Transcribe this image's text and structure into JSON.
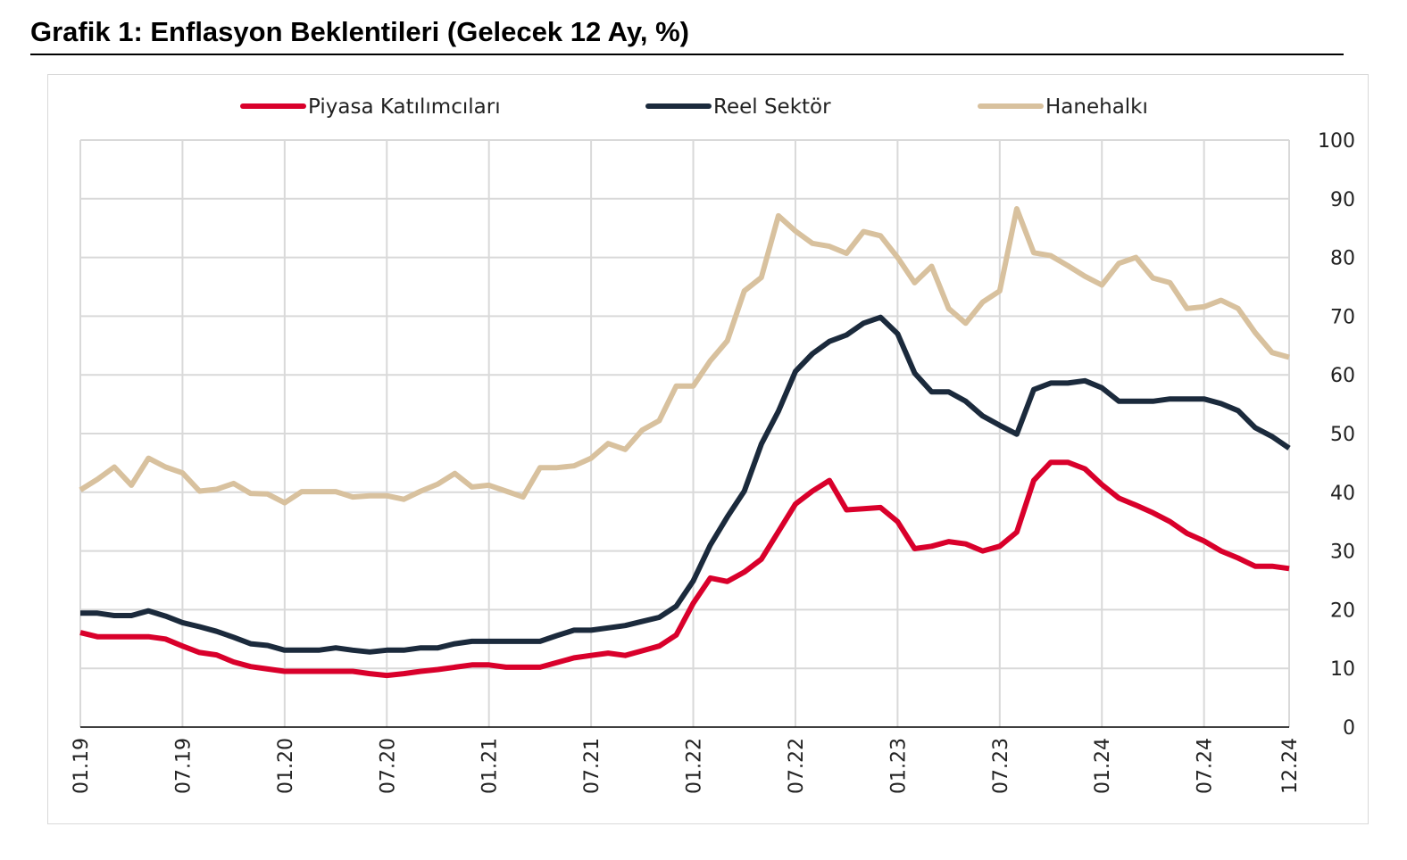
{
  "chart_data": {
    "type": "line",
    "title": "Grafik 1: Enflasyon Beklentileri (Gelecek 12 Ay, %)",
    "xlabel": "",
    "ylabel": "",
    "ylim": [
      0,
      100
    ],
    "y_ticks": [
      0,
      10,
      20,
      30,
      40,
      50,
      60,
      70,
      80,
      90,
      100
    ],
    "x_tick_labels": [
      "01.19",
      "07.19",
      "01.20",
      "07.20",
      "01.21",
      "07.21",
      "01.22",
      "07.22",
      "01.23",
      "07.23",
      "01.24",
      "07.24",
      "12.24"
    ],
    "x_tick_index": [
      0,
      6,
      12,
      18,
      24,
      30,
      36,
      42,
      48,
      54,
      60,
      66,
      71
    ],
    "n_points": 72,
    "grid": true,
    "legend_position": "top",
    "series": [
      {
        "name": "Piyasa Katılımcıları",
        "color": "#d9002b",
        "values": [
          16.1,
          15.4,
          15.4,
          15.4,
          15.4,
          15.0,
          13.8,
          12.7,
          12.3,
          11.1,
          10.3,
          9.9,
          9.5,
          9.5,
          9.5,
          9.5,
          9.5,
          9.1,
          8.8,
          9.1,
          9.5,
          9.8,
          10.2,
          10.6,
          10.6,
          10.2,
          10.2,
          10.2,
          11.0,
          11.8,
          12.2,
          12.6,
          12.2,
          13.0,
          13.8,
          15.7,
          21.1,
          25.4,
          24.8,
          26.4,
          28.6,
          33.3,
          38.0,
          40.2,
          42.0,
          37.0,
          37.2,
          37.4,
          35.0,
          30.4,
          30.8,
          31.6,
          31.2,
          30.0,
          30.8,
          33.2,
          42.0,
          45.1,
          45.1,
          44.0,
          41.3,
          39.0,
          37.8,
          36.5,
          35.0,
          33.0,
          31.7,
          30.0,
          28.8,
          27.4,
          27.4,
          27.0
        ]
      },
      {
        "name": "Reel Sektör",
        "color": "#1b2a3c",
        "values": [
          19.4,
          19.4,
          19.0,
          19.0,
          19.8,
          18.9,
          17.8,
          17.1,
          16.3,
          15.3,
          14.2,
          13.9,
          13.1,
          13.1,
          13.1,
          13.5,
          13.1,
          12.8,
          13.1,
          13.1,
          13.5,
          13.5,
          14.2,
          14.6,
          14.6,
          14.6,
          14.6,
          14.6,
          15.6,
          16.5,
          16.5,
          16.9,
          17.3,
          18.0,
          18.7,
          20.6,
          24.9,
          31.0,
          35.8,
          40.2,
          48.2,
          53.8,
          60.6,
          63.6,
          65.7,
          66.8,
          68.8,
          69.8,
          67.0,
          60.3,
          57.1,
          57.1,
          55.5,
          53.0,
          51.4,
          49.9,
          57.5,
          58.6,
          58.6,
          59.0,
          57.8,
          55.5,
          55.5,
          55.5,
          55.9,
          55.9,
          55.9,
          55.1,
          53.9,
          51.0,
          49.5,
          47.5
        ]
      },
      {
        "name": "Hanehalkı",
        "color": "#d8c19e",
        "values": [
          40.4,
          42.2,
          44.3,
          41.2,
          45.8,
          44.3,
          43.3,
          40.2,
          40.5,
          41.5,
          39.8,
          39.7,
          38.2,
          40.1,
          40.1,
          40.1,
          39.2,
          39.4,
          39.4,
          38.8,
          40.2,
          41.4,
          43.2,
          40.9,
          41.2,
          40.2,
          39.2,
          44.2,
          44.2,
          44.5,
          45.8,
          48.3,
          47.3,
          50.6,
          52.2,
          58.1,
          58.1,
          62.4,
          65.8,
          74.3,
          76.6,
          87.1,
          84.5,
          82.4,
          81.9,
          80.7,
          84.4,
          83.7,
          80.0,
          75.7,
          78.5,
          71.3,
          68.8,
          72.4,
          74.3,
          88.3,
          80.8,
          80.3,
          78.6,
          76.8,
          75.3,
          79.0,
          80.0,
          76.5,
          75.7,
          71.3,
          71.6,
          72.7,
          71.3,
          67.2,
          63.8,
          63.0
        ]
      }
    ]
  }
}
